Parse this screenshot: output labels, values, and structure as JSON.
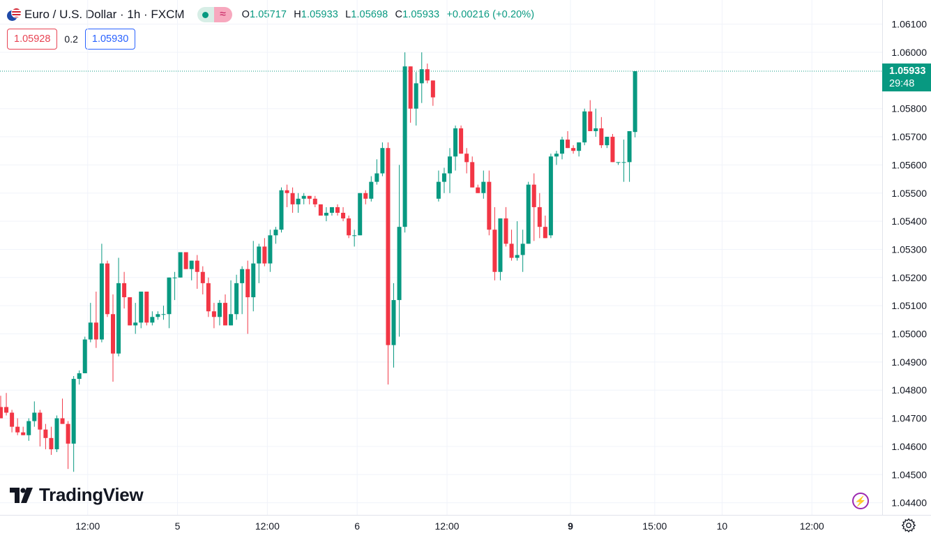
{
  "header": {
    "symbol_title": "Euro / U.S. Dollar · 1h · FXCM",
    "ohlc": [
      {
        "key": "O",
        "value": "1.05717"
      },
      {
        "key": "H",
        "value": "1.05933"
      },
      {
        "key": "L",
        "value": "1.05698"
      },
      {
        "key": "C",
        "value": "1.05933"
      }
    ],
    "change": "+0.00216 (+0.20%)",
    "bid": "1.05928",
    "spread": "0.2",
    "ask": "1.05930"
  },
  "price_tag": {
    "price": "1.05933",
    "countdown": "29:48"
  },
  "branding": {
    "logo_text": "TradingView"
  },
  "icons": {
    "bolt": "lightning-icon",
    "settings": "gear-icon",
    "flag": "eur-usd-flag-icon"
  },
  "colors": {
    "up": "#089981",
    "down": "#f23645",
    "grid": "#f0f3fa",
    "text": "#131722",
    "spark": "#9c27b0"
  },
  "chart_data": {
    "type": "candlestick",
    "title": "Euro / U.S. Dollar · 1h · FXCM",
    "ylim": [
      1.0436,
      1.0615
    ],
    "y_ticks": [
      "1.06100",
      "1.06000",
      "1.05800",
      "1.05700",
      "1.05600",
      "1.05500",
      "1.05400",
      "1.05300",
      "1.05200",
      "1.05100",
      "1.05000",
      "1.04900",
      "1.04800",
      "1.04700",
      "1.04600",
      "1.04500",
      "1.04400"
    ],
    "x_ticks": [
      {
        "label": "12:00",
        "bar": 15.5,
        "bold": false
      },
      {
        "label": "5",
        "bar": 31.5,
        "bold": false
      },
      {
        "label": "12:00",
        "bar": 47.5,
        "bold": false
      },
      {
        "label": "6",
        "bar": 63.5,
        "bold": false
      },
      {
        "label": "12:00",
        "bar": 79.5,
        "bold": false
      },
      {
        "label": "9",
        "bar": 101.5,
        "bold": true
      },
      {
        "label": "15:00",
        "bar": 116.5,
        "bold": false
      },
      {
        "label": "10",
        "bar": 128.5,
        "bold": false
      },
      {
        "label": "12:00",
        "bar": 144.5,
        "bold": false
      }
    ],
    "last_price": 1.05933,
    "candles": [
      [
        1.0474,
        1.0478,
        1.047,
        1.047
      ],
      [
        1.0474,
        1.0479,
        1.0471,
        1.0472
      ],
      [
        1.0472,
        1.0473,
        1.0465,
        1.0467
      ],
      [
        1.0467,
        1.047,
        1.0464,
        1.0465
      ],
      [
        1.0465,
        1.0467,
        1.0464,
        1.0464
      ],
      [
        1.0464,
        1.047,
        1.0462,
        1.0469
      ],
      [
        1.0469,
        1.0476,
        1.0467,
        1.0472
      ],
      [
        1.0472,
        1.0473,
        1.046,
        1.0466
      ],
      [
        1.0466,
        1.0468,
        1.0459,
        1.0463
      ],
      [
        1.0463,
        1.0467,
        1.0457,
        1.0459
      ],
      [
        1.0459,
        1.0471,
        1.0458,
        1.047
      ],
      [
        1.047,
        1.0477,
        1.0468,
        1.0468
      ],
      [
        1.0468,
        1.0469,
        1.0452,
        1.0461
      ],
      [
        1.0461,
        1.0485,
        1.0451,
        1.0484
      ],
      [
        1.0484,
        1.0487,
        1.0482,
        1.0486
      ],
      [
        1.0486,
        1.0499,
        1.0486,
        1.0498
      ],
      [
        1.0498,
        1.0511,
        1.0497,
        1.0504
      ],
      [
        1.0504,
        1.0515,
        1.0495,
        1.0498
      ],
      [
        1.0498,
        1.0532,
        1.0497,
        1.0525
      ],
      [
        1.0525,
        1.0526,
        1.0506,
        1.0507
      ],
      [
        1.0507,
        1.0514,
        1.0483,
        1.0493
      ],
      [
        1.0493,
        1.0527,
        1.0492,
        1.0518
      ],
      [
        1.0518,
        1.0522,
        1.0509,
        1.0513
      ],
      [
        1.0513,
        1.0513,
        1.0503,
        1.0503
      ],
      [
        1.0503,
        1.0511,
        1.05,
        1.0504
      ],
      [
        1.0504,
        1.0515,
        1.0502,
        1.0515
      ],
      [
        1.0515,
        1.0515,
        1.0503,
        1.0504
      ],
      [
        1.0504,
        1.0508,
        1.0503,
        1.0506
      ],
      [
        1.0506,
        1.0508,
        1.0505,
        1.0507
      ],
      [
        1.0507,
        1.051,
        1.0505,
        1.0507
      ],
      [
        1.0507,
        1.052,
        1.0502,
        1.052
      ],
      [
        1.052,
        1.0522,
        1.0512,
        1.052
      ],
      [
        1.052,
        1.0529,
        1.052,
        1.0529
      ],
      [
        1.0529,
        1.0529,
        1.0523,
        1.0523
      ],
      [
        1.0523,
        1.0526,
        1.0519,
        1.0526
      ],
      [
        1.0526,
        1.0528,
        1.0516,
        1.0522
      ],
      [
        1.0522,
        1.0524,
        1.0514,
        1.0518
      ],
      [
        1.0518,
        1.052,
        1.0506,
        1.0508
      ],
      [
        1.0508,
        1.0511,
        1.0502,
        1.0506
      ],
      [
        1.0506,
        1.0512,
        1.0503,
        1.0511
      ],
      [
        1.0511,
        1.0514,
        1.0503,
        1.0503
      ],
      [
        1.0503,
        1.0519,
        1.0503,
        1.0507
      ],
      [
        1.0507,
        1.0521,
        1.0505,
        1.0518
      ],
      [
        1.0518,
        1.0524,
        1.0507,
        1.0523
      ],
      [
        1.0523,
        1.0526,
        1.05,
        1.0513
      ],
      [
        1.0513,
        1.0533,
        1.0508,
        1.0525
      ],
      [
        1.0525,
        1.0532,
        1.0518,
        1.0531
      ],
      [
        1.0531,
        1.0534,
        1.0524,
        1.0525
      ],
      [
        1.0525,
        1.0537,
        1.0522,
        1.0535
      ],
      [
        1.0535,
        1.0538,
        1.0532,
        1.0537
      ],
      [
        1.0537,
        1.0552,
        1.0536,
        1.0551
      ],
      [
        1.0551,
        1.0553,
        1.0545,
        1.055
      ],
      [
        1.055,
        1.0552,
        1.0543,
        1.0546
      ],
      [
        1.0546,
        1.055,
        1.0543,
        1.0548
      ],
      [
        1.0548,
        1.055,
        1.0546,
        1.0549
      ],
      [
        1.0549,
        1.0549,
        1.0546,
        1.0548
      ],
      [
        1.0548,
        1.0549,
        1.0545,
        1.0546
      ],
      [
        1.0546,
        1.0546,
        1.0542,
        1.0542
      ],
      [
        1.0542,
        1.0545,
        1.054,
        1.0543
      ],
      [
        1.0543,
        1.0545,
        1.0542,
        1.0545
      ],
      [
        1.0545,
        1.0546,
        1.0542,
        1.0543
      ],
      [
        1.0543,
        1.0545,
        1.054,
        1.0541
      ],
      [
        1.0541,
        1.0542,
        1.0534,
        1.0535
      ],
      [
        1.0535,
        1.0537,
        1.0531,
        1.0535
      ],
      [
        1.0535,
        1.055,
        1.0535,
        1.055
      ],
      [
        1.055,
        1.0551,
        1.0546,
        1.0548
      ],
      [
        1.0548,
        1.0556,
        1.0547,
        1.0554
      ],
      [
        1.0554,
        1.0562,
        1.0553,
        1.0557
      ],
      [
        1.0557,
        1.0568,
        1.0556,
        1.0566
      ],
      [
        1.0566,
        1.0568,
        1.0482,
        1.0496
      ],
      [
        1.0496,
        1.0518,
        1.0488,
        1.0512
      ],
      [
        1.0512,
        1.056,
        1.0499,
        1.0538
      ],
      [
        1.0538,
        1.06,
        1.0536,
        1.0595
      ],
      [
        1.0595,
        1.0595,
        1.0575,
        1.058
      ],
      [
        1.058,
        1.0593,
        1.0574,
        1.0589
      ],
      [
        1.0589,
        1.06,
        1.0582,
        1.0594
      ],
      [
        1.0594,
        1.0596,
        1.0589,
        1.059
      ],
      [
        1.059,
        1.059,
        1.0581,
        1.0584
      ],
      [
        1.0548,
        1.0558,
        1.0547,
        1.0554
      ],
      [
        1.0554,
        1.0559,
        1.055,
        1.0557
      ],
      [
        1.0557,
        1.0566,
        1.055,
        1.0563
      ],
      [
        1.0563,
        1.0574,
        1.0558,
        1.0573
      ],
      [
        1.0573,
        1.0574,
        1.0564,
        1.0564
      ],
      [
        1.0564,
        1.0566,
        1.0557,
        1.0561
      ],
      [
        1.0561,
        1.0563,
        1.0552,
        1.0552
      ],
      [
        1.0552,
        1.0553,
        1.055,
        1.055
      ],
      [
        1.055,
        1.0558,
        1.0548,
        1.0554
      ],
      [
        1.0554,
        1.0558,
        1.0535,
        1.0537
      ],
      [
        1.0537,
        1.0545,
        1.0519,
        1.0522
      ],
      [
        1.0522,
        1.0541,
        1.0519,
        1.0541
      ],
      [
        1.0541,
        1.0545,
        1.0531,
        1.0532
      ],
      [
        1.0532,
        1.0537,
        1.0526,
        1.0527
      ],
      [
        1.0527,
        1.054,
        1.0526,
        1.0528
      ],
      [
        1.0528,
        1.0537,
        1.0522,
        1.0532
      ],
      [
        1.0532,
        1.0554,
        1.0532,
        1.0553
      ],
      [
        1.0553,
        1.0557,
        1.0533,
        1.0545
      ],
      [
        1.0545,
        1.055,
        1.0534,
        1.0538
      ],
      [
        1.0538,
        1.0542,
        1.0534,
        1.0534
      ],
      [
        1.0535,
        1.0564,
        1.0534,
        1.0563
      ],
      [
        1.0563,
        1.0565,
        1.056,
        1.0564
      ],
      [
        1.0564,
        1.057,
        1.0562,
        1.0569
      ],
      [
        1.0569,
        1.0572,
        1.0566,
        1.0566
      ],
      [
        1.0566,
        1.0567,
        1.0564,
        1.0565
      ],
      [
        1.0565,
        1.0568,
        1.0563,
        1.0568
      ],
      [
        1.0568,
        1.058,
        1.0567,
        1.0579
      ],
      [
        1.0579,
        1.0583,
        1.0572,
        1.0572
      ],
      [
        1.0572,
        1.058,
        1.057,
        1.0573
      ],
      [
        1.0573,
        1.0577,
        1.0566,
        1.0567
      ],
      [
        1.0567,
        1.057,
        1.0566,
        1.057
      ],
      [
        1.057,
        1.0571,
        1.0561,
        1.0561
      ],
      [
        1.0561,
        1.0561,
        1.056,
        1.0561
      ],
      [
        1.0561,
        1.0569,
        1.0554,
        1.0561
      ],
      [
        1.0561,
        1.0572,
        1.0554,
        1.0572
      ],
      [
        1.05717,
        1.05933,
        1.05698,
        1.05933
      ]
    ]
  }
}
